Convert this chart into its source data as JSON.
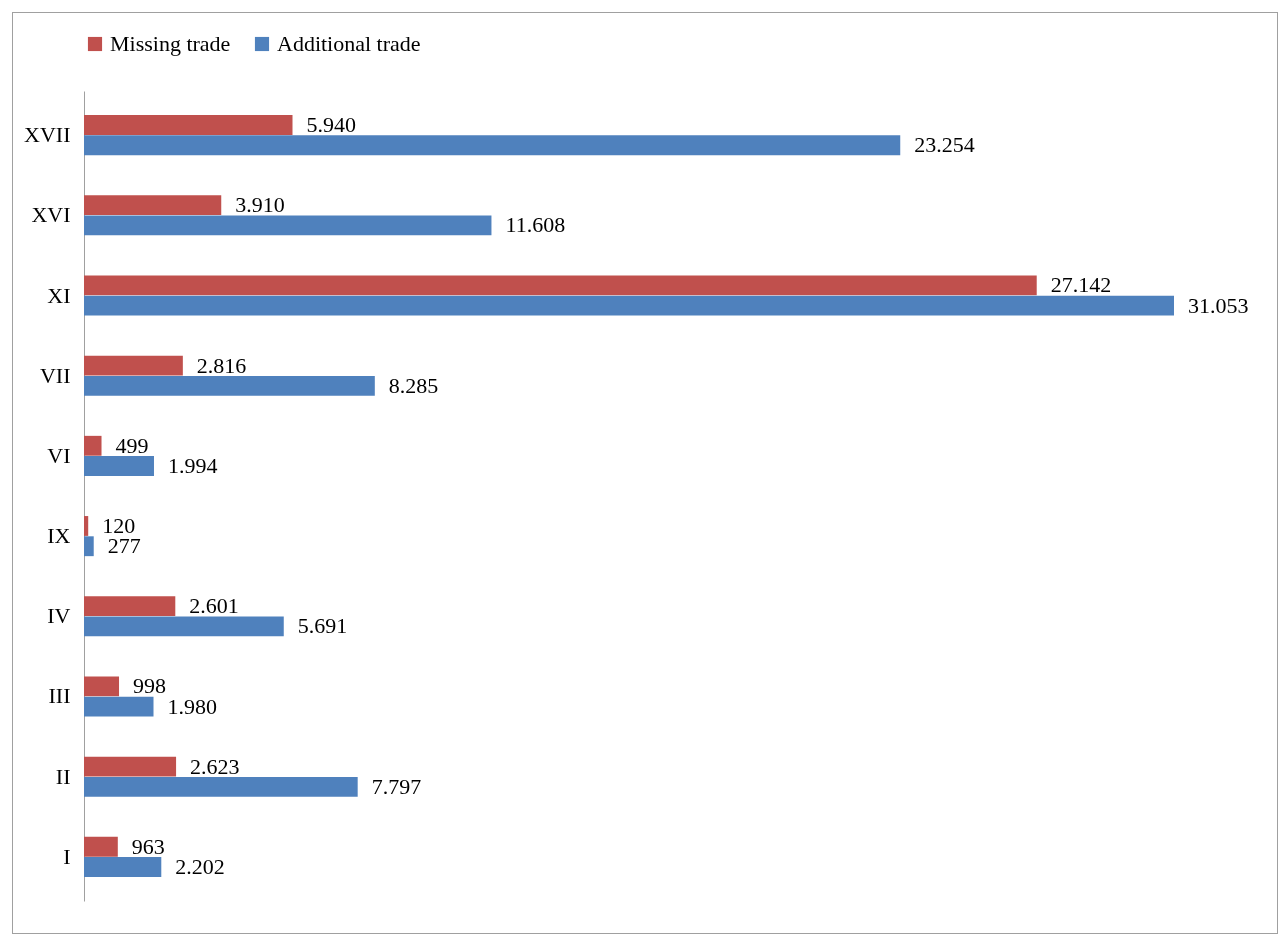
{
  "chart_data": {
    "type": "bar",
    "orientation": "horizontal",
    "legend": "top",
    "categories": [
      "XVII",
      "XVI",
      "XI",
      "VII",
      "VI",
      "IX",
      "IV",
      "III",
      "II",
      "I"
    ],
    "series": [
      {
        "name": "Missing trade",
        "color": "#c0504d",
        "values": [
          5940,
          3910,
          27142,
          2816,
          499,
          120,
          2601,
          998,
          2623,
          963
        ],
        "value_labels": [
          "5.940",
          "3.910",
          "27.142",
          "2.816",
          "499",
          "120",
          "2.601",
          "998",
          "2.623",
          "963"
        ]
      },
      {
        "name": "Additional trade",
        "color": "#4f81bd",
        "values": [
          23254,
          11608,
          31053,
          8285,
          1994,
          277,
          5691,
          1980,
          7797,
          2202
        ],
        "value_labels": [
          "23.254",
          "11.608",
          "31.053",
          "8.285",
          "1.994",
          "277",
          "5.691",
          "1.980",
          "7.797",
          "2.202"
        ]
      }
    ]
  }
}
